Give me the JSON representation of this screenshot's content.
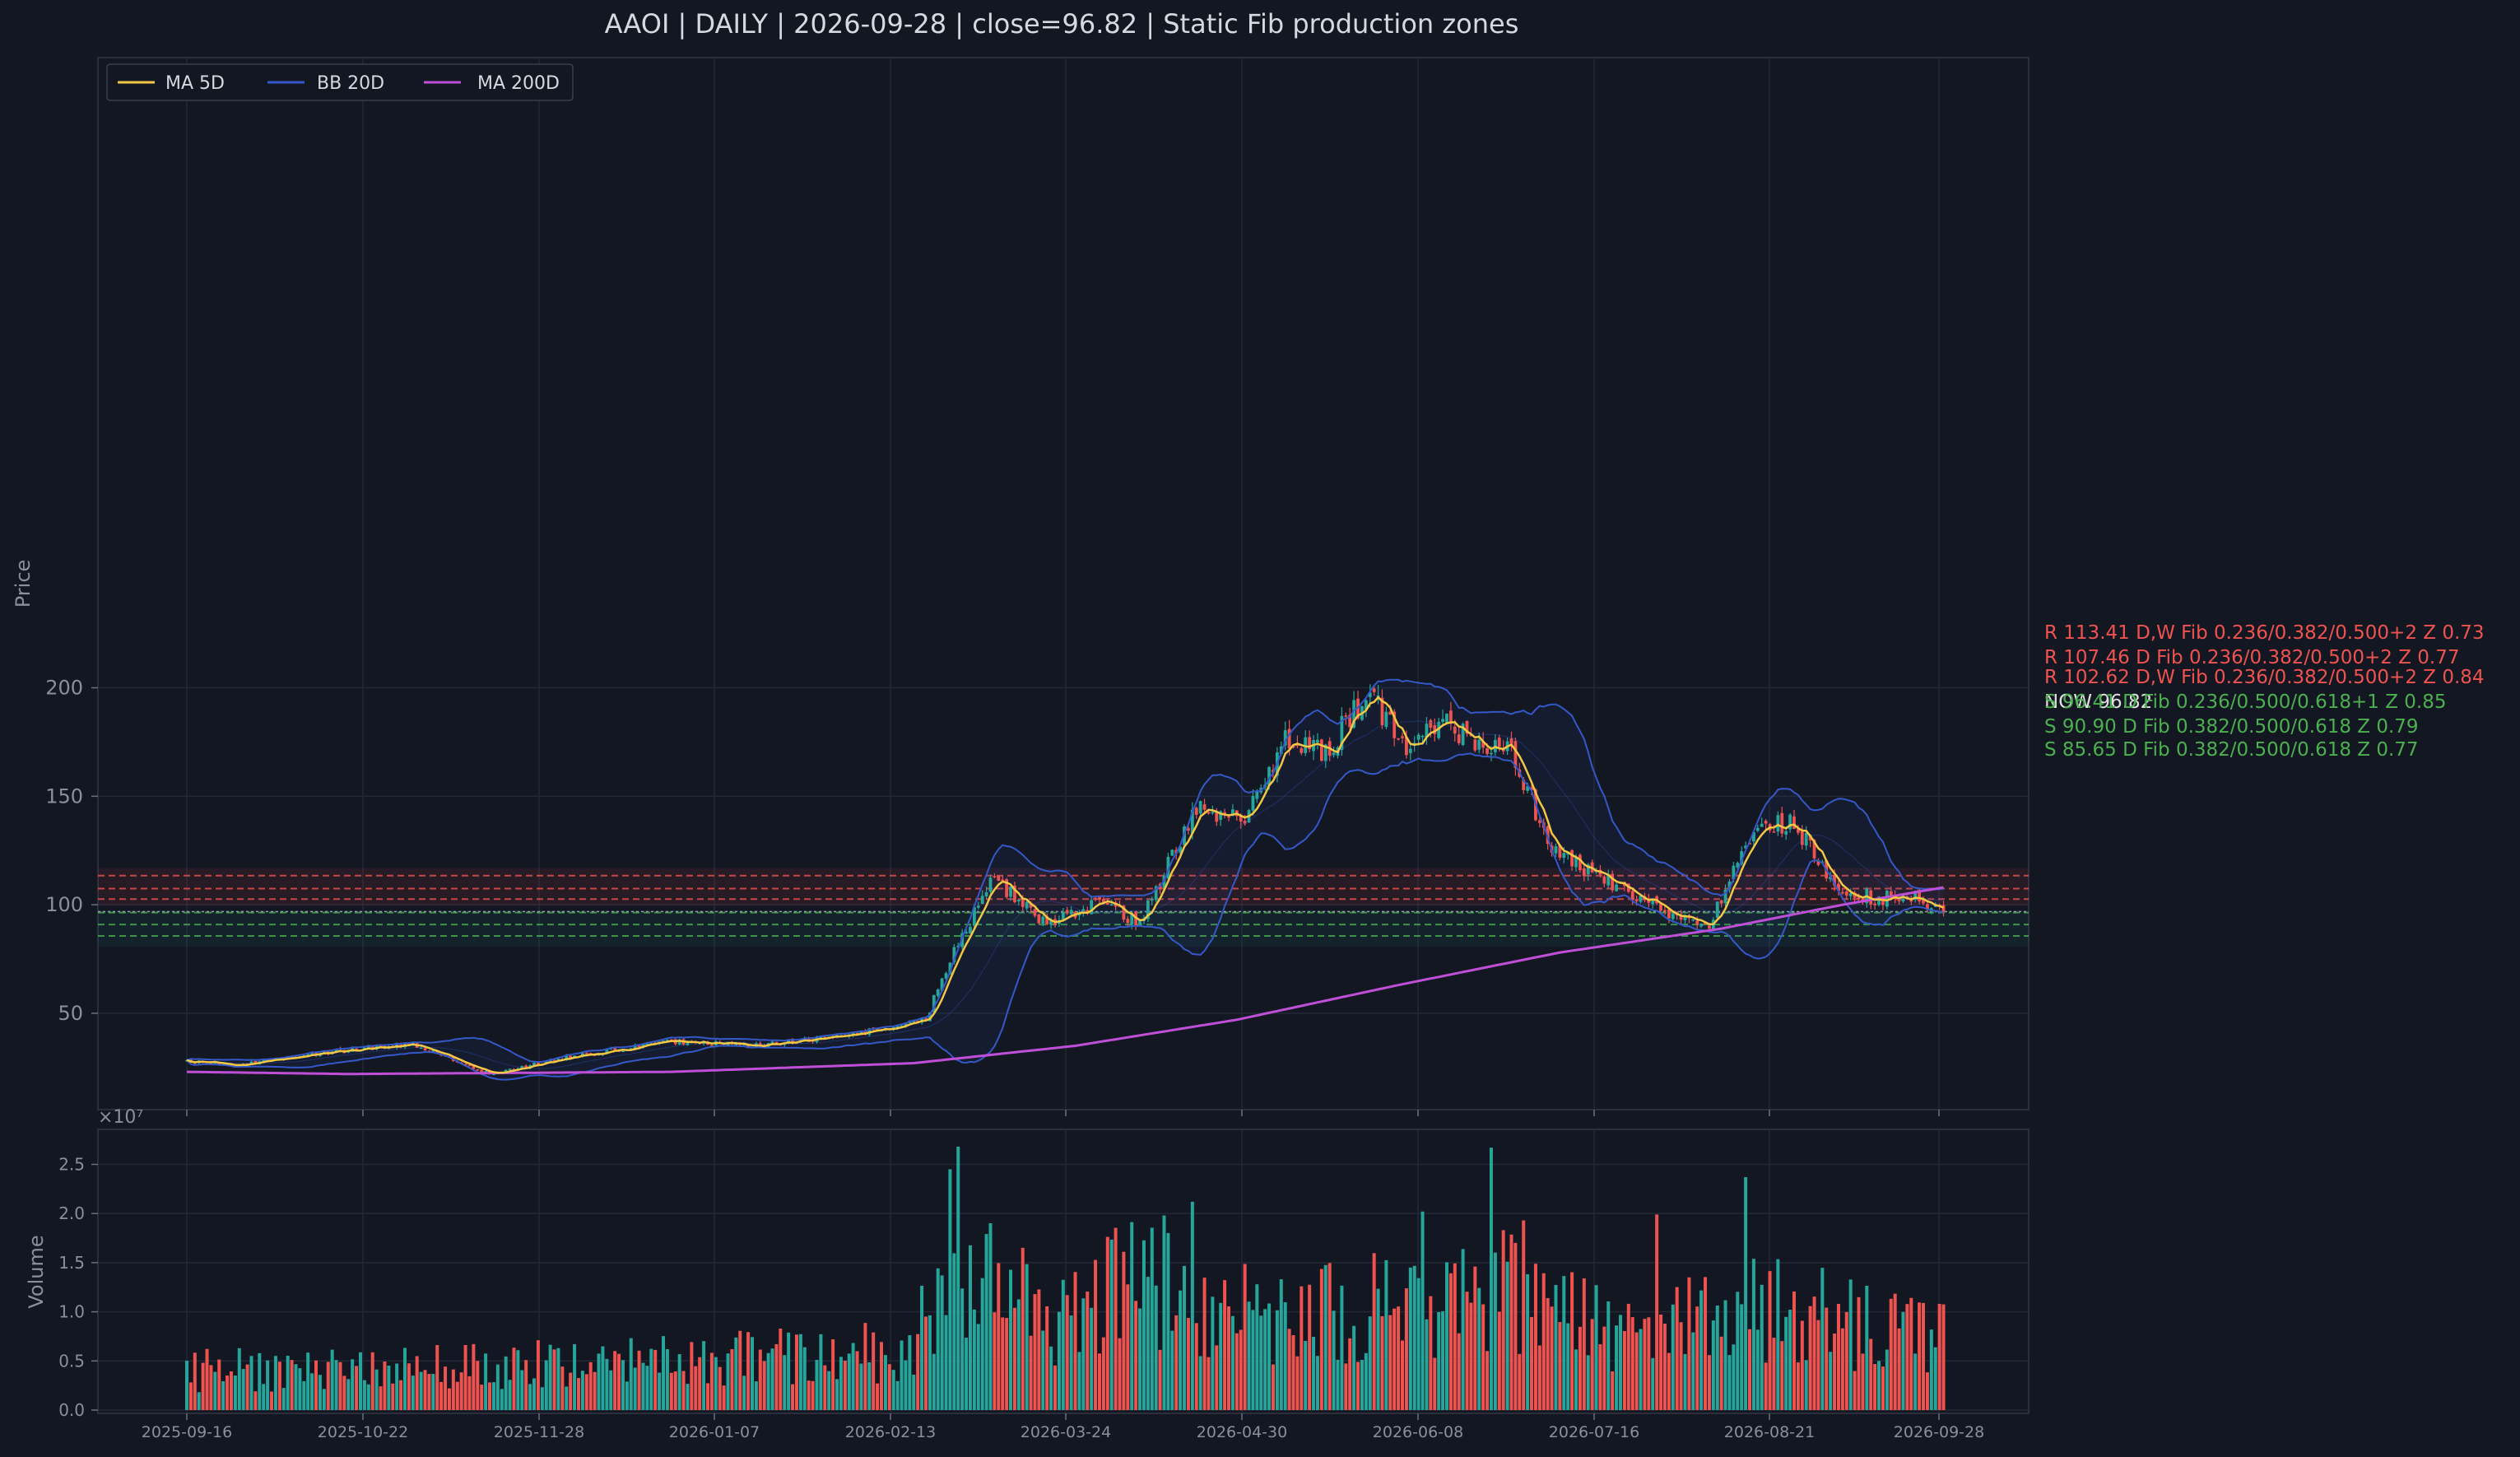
{
  "chart_data": [
    {
      "type": "candlestick",
      "title": "AAOI  |  DAILY  |  2026-09-28  |  close=96.82  |  Static Fib production zones",
      "xlabel": "",
      "ylabel": "Price",
      "ylim": [
        0,
        245
      ],
      "yticks": [
        50,
        100,
        150,
        200
      ],
      "xtick_labels": [
        "2025-09-16",
        "2025-10-22",
        "2025-11-28",
        "2026-01-07",
        "2026-02-13",
        "2026-03-24",
        "2026-04-30",
        "2026-06-08",
        "2026-07-16",
        "2026-08-21",
        "2026-09-28"
      ],
      "grid": true,
      "legend_placement": "top-left",
      "legend": [
        "MA 5D",
        "BB 20D",
        "MA 200D"
      ],
      "series_colors": {
        "ma5": "#f2c744",
        "bb": "#3558c8",
        "ma200": "#c04fd8",
        "up": "#26a69a",
        "down": "#ef5350"
      },
      "price_path_keypoints": [
        [
          0,
          28
        ],
        [
          12,
          26
        ],
        [
          30,
          31
        ],
        [
          55,
          36
        ],
        [
          75,
          22
        ],
        [
          95,
          30
        ],
        [
          120,
          37
        ],
        [
          140,
          35
        ],
        [
          165,
          40
        ],
        [
          183,
          47
        ],
        [
          190,
          80
        ],
        [
          200,
          112
        ],
        [
          212,
          92
        ],
        [
          225,
          100
        ],
        [
          236,
          92
        ],
        [
          250,
          145
        ],
        [
          262,
          140
        ],
        [
          272,
          175
        ],
        [
          282,
          170
        ],
        [
          292,
          197
        ],
        [
          302,
          175
        ],
        [
          312,
          188
        ],
        [
          318,
          172
        ],
        [
          327,
          175
        ],
        [
          338,
          125
        ],
        [
          355,
          108
        ],
        [
          365,
          98
        ],
        [
          376,
          88
        ],
        [
          388,
          135
        ],
        [
          398,
          138
        ],
        [
          408,
          108
        ],
        [
          418,
          103
        ],
        [
          427,
          104
        ],
        [
          435,
          96.82
        ]
      ],
      "ma200_keypoints": [
        [
          0,
          23
        ],
        [
          40,
          22
        ],
        [
          120,
          23
        ],
        [
          180,
          27
        ],
        [
          220,
          35
        ],
        [
          260,
          47
        ],
        [
          300,
          63
        ],
        [
          340,
          78
        ],
        [
          380,
          89
        ],
        [
          410,
          100
        ],
        [
          435,
          108
        ]
      ],
      "zones": [
        {
          "type": "R",
          "value": 113.41,
          "label": "R 113.41  D,W  Fib 0.236/0.382/0.500+2  Z 0.73"
        },
        {
          "type": "R",
          "value": 107.46,
          "label": "R 107.46  D  Fib 0.236/0.382/0.500+2  Z 0.77"
        },
        {
          "type": "R",
          "value": 102.62,
          "label": "R 102.62  D,W  Fib 0.236/0.382/0.500+2  Z 0.84"
        },
        {
          "type": "NOW",
          "value": 96.82,
          "label": "NOW 96.82"
        },
        {
          "type": "S",
          "value": 96.41,
          "label": "S 96.41  D  Fib 0.236/0.500/0.618+1  Z 0.85"
        },
        {
          "type": "S",
          "value": 90.9,
          "label": "S 90.90  D  Fib 0.382/0.500/0.618  Z 0.79"
        },
        {
          "type": "S",
          "value": 85.65,
          "label": "S 85.65  D  Fib 0.382/0.500/0.618  Z 0.77"
        }
      ]
    },
    {
      "type": "bar",
      "ylabel": "Volume",
      "offset_label": "×10⁷",
      "ylim": [
        0,
        2.8
      ],
      "yticks": [
        "0.0",
        "0.5",
        "1.0",
        "1.5",
        "2.0",
        "2.5"
      ],
      "ytick_values": [
        0,
        0.5,
        1.0,
        1.5,
        2.0,
        2.5
      ],
      "volume_profile_keypoints": [
        [
          0,
          0.4
        ],
        [
          60,
          0.45
        ],
        [
          120,
          0.5
        ],
        [
          180,
          0.6
        ],
        [
          190,
          1.7
        ],
        [
          215,
          1.0
        ],
        [
          235,
          1.3
        ],
        [
          270,
          0.9
        ],
        [
          300,
          1.1
        ],
        [
          330,
          1.2
        ],
        [
          360,
          0.7
        ],
        [
          385,
          1.1
        ],
        [
          410,
          0.9
        ],
        [
          435,
          0.7
        ]
      ],
      "spikes": [
        [
          189,
          2.45
        ],
        [
          191,
          2.68
        ],
        [
          323,
          2.67
        ],
        [
          249,
          2.12
        ],
        [
          242,
          1.98
        ],
        [
          306,
          2.02
        ],
        [
          386,
          2.37
        ],
        [
          364,
          1.99
        ],
        [
          331,
          1.93
        ]
      ]
    }
  ]
}
